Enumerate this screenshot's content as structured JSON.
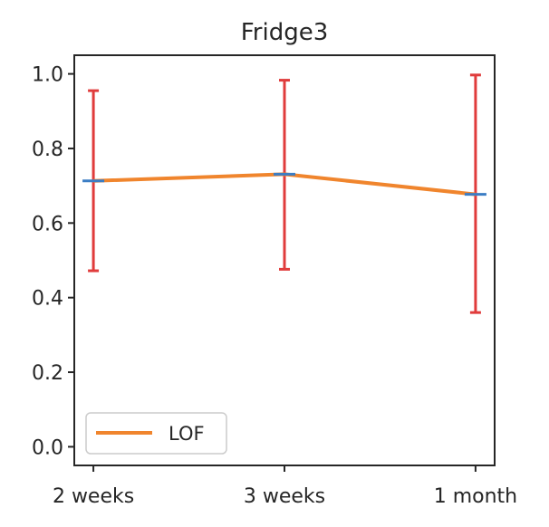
{
  "chart_data": {
    "type": "line",
    "title": "Fridge3",
    "xlabel": "",
    "ylabel": "",
    "categories": [
      "2 weeks",
      "3 weeks",
      "1 month"
    ],
    "ylim": [
      -0.05,
      1.05
    ],
    "yticks": [
      0.0,
      0.2,
      0.4,
      0.6,
      0.8,
      1.0
    ],
    "ytick_labels": [
      "0.0",
      "0.2",
      "0.4",
      "0.6",
      "0.8",
      "1.0"
    ],
    "grid": false,
    "legend": {
      "placement": "bottom-left",
      "entries": [
        "LOF"
      ]
    },
    "series": [
      {
        "name": "LOF",
        "values": [
          0.713,
          0.731,
          0.677
        ],
        "err_low": [
          0.472,
          0.476,
          0.36
        ],
        "err_high": [
          0.955,
          0.983,
          0.997
        ]
      }
    ],
    "colors": {
      "line": "#f0852d",
      "marker": "#3b7dc4",
      "errorbar": "#e03c3c",
      "axes": "#262626"
    }
  }
}
